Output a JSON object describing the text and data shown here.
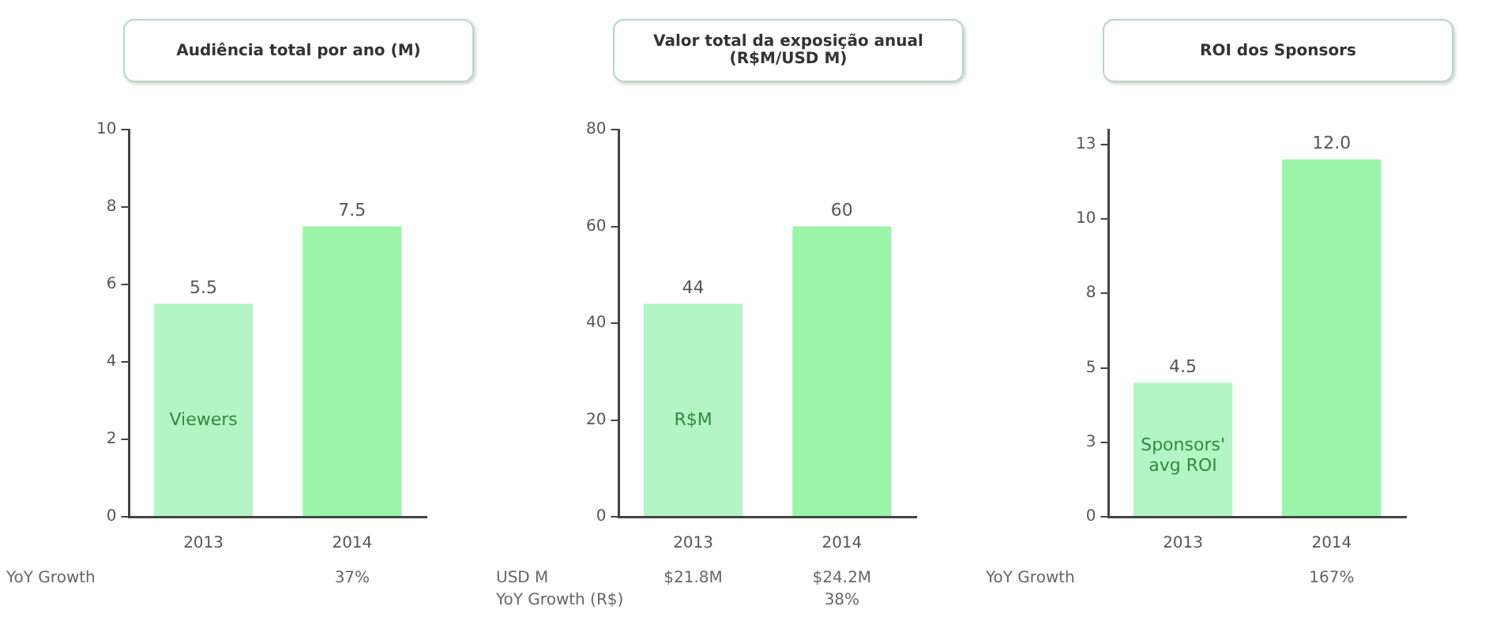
{
  "chart_data": [
    {
      "type": "bar",
      "title": "Audiência total por ano (M)",
      "categories": [
        "2013",
        "2014"
      ],
      "series": [
        {
          "name": "Viewers",
          "values": [
            5.5,
            7.5
          ],
          "colors": [
            "#b4f5c6",
            "#9af5a8"
          ],
          "value_labels": [
            "5.5",
            "7.5"
          ]
        }
      ],
      "ylim": [
        0,
        10
      ],
      "yticks": [
        0,
        2,
        4,
        6,
        8,
        10
      ],
      "legend": false,
      "annotations": [
        "YoY Growth",
        "37%"
      ]
    },
    {
      "type": "bar",
      "title": "Valor total da exposição anual (R$M/USD M)",
      "categories": [
        "2013",
        "2014"
      ],
      "series": [
        {
          "name": "R$M",
          "values": [
            44,
            60
          ],
          "colors": [
            "#b4f5c6",
            "#9af5a8"
          ],
          "value_labels": [
            "44",
            "60"
          ]
        }
      ],
      "ylim": [
        0,
        80
      ],
      "yticks": [
        0,
        20,
        40,
        60,
        80
      ],
      "legend": false,
      "annotations": [
        "USD M",
        "$21.8M",
        "$24.2M",
        "YoY Growth (R$)",
        "38%"
      ]
    },
    {
      "type": "bar",
      "title": "ROI dos Sponsors",
      "categories": [
        "2013",
        "2014"
      ],
      "series": [
        {
          "name": "Sponsors' avg ROI",
          "values": [
            4.5,
            12.0
          ],
          "colors": [
            "#b4f5c6",
            "#9af5a8"
          ],
          "value_labels": [
            "4.5",
            "12.0"
          ]
        }
      ],
      "ylim": [
        0,
        13
      ],
      "yticks": [
        0,
        {
          "value": 2.5,
          "label": "3"
        },
        5,
        {
          "value": 7.5,
          "label": "8"
        },
        10,
        {
          "value": 12.5,
          "label": "13"
        }
      ],
      "legend": false,
      "annotations": [
        "YoY Growth",
        "167%"
      ]
    }
  ]
}
